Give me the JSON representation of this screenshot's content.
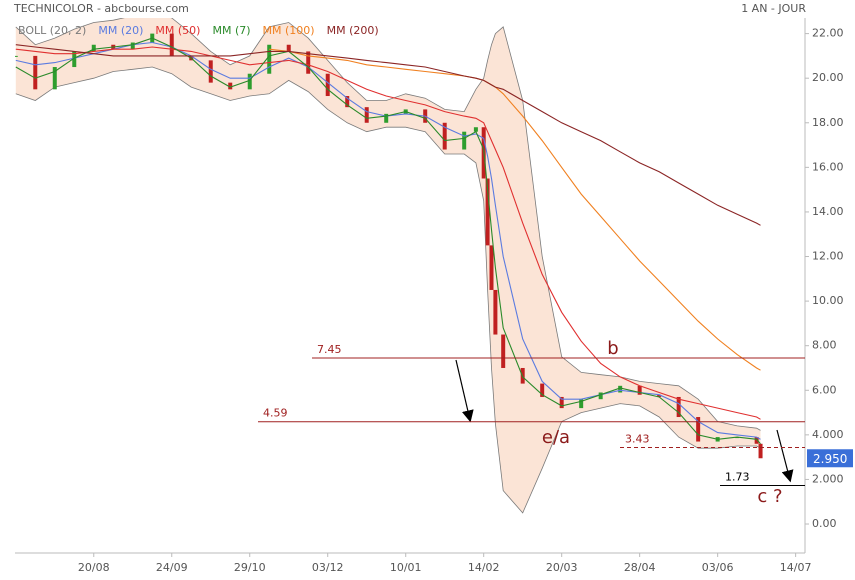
{
  "chart_data": {
    "type": "stock",
    "title": "TECHNICOLOR - abcbourse.com",
    "period": "1 AN - JOUR",
    "xlim": [
      -1.01,
      9.12
    ],
    "ylim": [
      -1.3,
      22.7
    ],
    "xticks": [
      {
        "value": 0,
        "label": "20/08"
      },
      {
        "value": 1,
        "label": "24/09"
      },
      {
        "value": 2,
        "label": "29/10"
      },
      {
        "value": 3,
        "label": "03/12"
      },
      {
        "value": 4,
        "label": "10/01"
      },
      {
        "value": 5,
        "label": "14/02"
      },
      {
        "value": 6,
        "label": "20/03"
      },
      {
        "value": 7,
        "label": "28/04"
      },
      {
        "value": 8,
        "label": "03/06"
      },
      {
        "value": 9,
        "label": "14/07"
      }
    ],
    "yticks": [
      {
        "value": 0,
        "label": "0.00"
      },
      {
        "value": 2,
        "label": "2.000"
      },
      {
        "value": 4,
        "label": "4.000"
      },
      {
        "value": 6,
        "label": "6.00"
      },
      {
        "value": 8,
        "label": "8.00"
      },
      {
        "value": 10,
        "label": "10.00"
      },
      {
        "value": 12,
        "label": "12.00"
      },
      {
        "value": 14,
        "label": "14.00"
      },
      {
        "value": 16,
        "label": "16.00"
      },
      {
        "value": 18,
        "label": "18.00"
      },
      {
        "value": 20,
        "label": "20.00"
      },
      {
        "value": 22,
        "label": "22.00"
      }
    ],
    "x": [
      -1.0,
      -0.75,
      -0.5,
      -0.25,
      0,
      0.25,
      0.5,
      0.75,
      1.0,
      1.25,
      1.5,
      1.75,
      2.0,
      2.25,
      2.5,
      2.75,
      3.0,
      3.25,
      3.5,
      3.75,
      4.0,
      4.25,
      4.5,
      4.75,
      4.9,
      5.0,
      5.05,
      5.1,
      5.15,
      5.25,
      5.5,
      5.75,
      6.0,
      6.25,
      6.5,
      6.75,
      7.0,
      7.25,
      7.5,
      7.75,
      8.0,
      8.25,
      8.5,
      8.55
    ],
    "price": {
      "up_color": "#2e9e2e",
      "down_color": "#c02020",
      "values": [
        21,
        19.5,
        20.5,
        21.2,
        21.5,
        21.3,
        21.6,
        22,
        21,
        20.8,
        19.8,
        19.5,
        20.2,
        21.5,
        21.2,
        20.2,
        19.2,
        18.7,
        18.0,
        18.4,
        18.6,
        18.0,
        16.8,
        17.6,
        17.8,
        15.5,
        12.5,
        10.5,
        8.5,
        7.0,
        6.3,
        5.7,
        5.2,
        5.6,
        5.9,
        6.2,
        5.8,
        5.7,
        4.8,
        3.7,
        3.9,
        3.9,
        3.6,
        2.95
      ]
    },
    "series": [
      {
        "name": "BOLL (20, 2)",
        "color": "#7a7a7a",
        "fill": "#fbe4d6",
        "values": [
          22.3,
          21.5,
          21.8,
          22.2,
          22.5,
          22.6,
          22.8,
          23.0,
          22.7,
          22.0,
          21.2,
          20.6,
          21.0,
          22.3,
          22.5,
          21.8,
          20.8,
          19.8,
          19.0,
          19.0,
          19.3,
          19.1,
          18.6,
          18.5,
          19.5,
          20.0,
          20.8,
          21.5,
          22.0,
          22.3,
          19.0,
          12.0,
          7.5,
          6.8,
          6.7,
          6.6,
          6.4,
          6.3,
          6.2,
          5.6,
          4.6,
          4.4,
          4.3,
          4.2
        ],
        "lower": [
          19.3,
          19.0,
          19.6,
          19.8,
          20.0,
          20.3,
          20.4,
          20.5,
          20.2,
          19.6,
          19.3,
          19.0,
          19.2,
          19.3,
          19.9,
          19.4,
          18.6,
          18.0,
          17.6,
          17.8,
          17.8,
          17.6,
          16.6,
          16.6,
          16.2,
          14.5,
          10.5,
          7.0,
          4.5,
          1.5,
          0.5,
          2.5,
          4.6,
          5.0,
          5.2,
          5.4,
          5.3,
          4.8,
          3.9,
          3.4,
          3.4,
          3.5,
          3.5,
          3.4
        ]
      },
      {
        "name": "MM (20)",
        "color": "#5b7be0",
        "values": [
          20.8,
          20.6,
          20.7,
          20.9,
          21.1,
          21.3,
          21.5,
          21.6,
          21.4,
          21.0,
          20.4,
          20.0,
          20.0,
          20.5,
          20.9,
          20.5,
          19.8,
          19.1,
          18.5,
          18.3,
          18.4,
          18.3,
          17.8,
          17.4,
          17.5,
          17.3,
          16.5,
          15.5,
          14.3,
          12.0,
          8.3,
          6.4,
          5.6,
          5.6,
          5.8,
          6.0,
          5.9,
          5.8,
          5.4,
          4.6,
          4.1,
          4.0,
          3.9,
          3.8
        ]
      },
      {
        "name": "MM (50)",
        "color": "#e03030",
        "values": [
          21.3,
          21.2,
          21.1,
          21.1,
          21.2,
          21.3,
          21.3,
          21.4,
          21.3,
          21.2,
          21.0,
          20.8,
          20.6,
          20.7,
          20.8,
          20.6,
          20.3,
          19.9,
          19.5,
          19.2,
          19.0,
          18.8,
          18.5,
          18.3,
          18.2,
          18.0,
          17.6,
          17.2,
          16.8,
          16.0,
          13.5,
          11.2,
          9.5,
          8.2,
          7.2,
          6.6,
          6.2,
          5.9,
          5.6,
          5.4,
          5.2,
          5.0,
          4.8,
          4.7
        ]
      },
      {
        "name": "MM (7)",
        "color": "#2a8a2a",
        "values": [
          20.5,
          20.0,
          20.3,
          20.9,
          21.3,
          21.4,
          21.5,
          21.8,
          21.4,
          20.9,
          20.1,
          19.6,
          19.9,
          21.0,
          21.2,
          20.5,
          19.5,
          18.8,
          18.2,
          18.3,
          18.5,
          18.2,
          17.2,
          17.3,
          17.6,
          16.8,
          15.0,
          13.2,
          11.5,
          8.8,
          6.6,
          5.8,
          5.3,
          5.5,
          5.8,
          6.1,
          5.9,
          5.7,
          5.0,
          4.0,
          3.8,
          3.9,
          3.8,
          3.6
        ]
      },
      {
        "name": "MM (100)",
        "color": "#f08020",
        "values": [
          null,
          null,
          null,
          null,
          null,
          null,
          null,
          null,
          null,
          null,
          null,
          null,
          null,
          21.3,
          21.2,
          21.0,
          20.9,
          20.8,
          20.6,
          20.5,
          20.4,
          20.3,
          20.2,
          20.1,
          20.0,
          19.9,
          19.8,
          19.7,
          19.6,
          19.3,
          18.3,
          17.2,
          16.0,
          14.8,
          13.8,
          12.8,
          11.8,
          10.9,
          10.0,
          9.1,
          8.3,
          7.6,
          7.0,
          6.9
        ]
      },
      {
        "name": "MM (200)",
        "color": "#8b2525",
        "values": [
          21.5,
          21.4,
          21.3,
          21.2,
          21.1,
          21.0,
          21.0,
          21.0,
          21.0,
          21.0,
          21.0,
          21.0,
          21.1,
          21.2,
          21.2,
          21.1,
          21.0,
          20.9,
          20.8,
          20.7,
          20.6,
          20.5,
          20.3,
          20.1,
          20.0,
          19.9,
          19.8,
          19.7,
          19.6,
          19.5,
          19.0,
          18.5,
          18.0,
          17.6,
          17.2,
          16.7,
          16.2,
          15.8,
          15.3,
          14.8,
          14.3,
          13.9,
          13.5,
          13.4
        ]
      }
    ],
    "levels": [
      {
        "value": 7.45,
        "color": "#a02020",
        "style": "solid"
      },
      {
        "value": 4.59,
        "color": "#a02020",
        "style": "solid"
      },
      {
        "value": 3.43,
        "color": "#a02020",
        "style": "dashed"
      },
      {
        "value": 1.73,
        "color": "#000000",
        "style": "solid"
      }
    ],
    "annotations": [
      "b",
      "e/a",
      "c ?"
    ],
    "last_price": {
      "value": 2.95,
      "label": "2.950",
      "color": "#3a6fd8"
    },
    "grid": false
  }
}
